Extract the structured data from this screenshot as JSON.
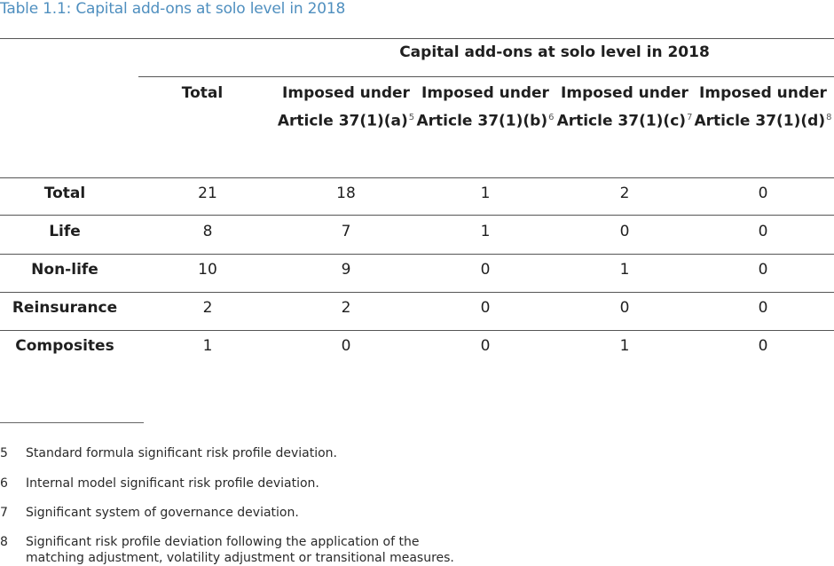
{
  "caption": "Table 1.1: Capital add-ons at solo level in 2018",
  "table": {
    "group_header": "Capital add-ons at solo level in 2018",
    "columns": [
      {
        "label": "Total",
        "sup": ""
      },
      {
        "label": "Imposed under Article 37(1)(a)",
        "sup": "5"
      },
      {
        "label": "Imposed under Article 37(1)(b)",
        "sup": "6"
      },
      {
        "label": "Imposed under Article 37(1)(c)",
        "sup": "7"
      },
      {
        "label": "Imposed under Article 37(1)(d)",
        "sup": "8"
      }
    ],
    "rows": [
      {
        "label": "Total",
        "values": [
          "21",
          "18",
          "1",
          "2",
          "0"
        ]
      },
      {
        "label": "Life",
        "values": [
          "8",
          "7",
          "1",
          "0",
          "0"
        ]
      },
      {
        "label": "Non-life",
        "values": [
          "10",
          "9",
          "0",
          "1",
          "0"
        ]
      },
      {
        "label": "Reinsurance",
        "values": [
          "2",
          "2",
          "0",
          "0",
          "0"
        ]
      },
      {
        "label": "Composites",
        "values": [
          "1",
          "0",
          "0",
          "1",
          "0"
        ]
      }
    ]
  },
  "footnotes": [
    {
      "num": "5",
      "text": "Standard formula significant risk profile deviation."
    },
    {
      "num": "6",
      "text": "Internal model significant risk profile deviation."
    },
    {
      "num": "7",
      "text": "Significant system of governance deviation."
    },
    {
      "num": "8",
      "text": "Significant risk profile deviation following the application of the matching adjustment, volatility adjustment or transitional measures."
    }
  ]
}
